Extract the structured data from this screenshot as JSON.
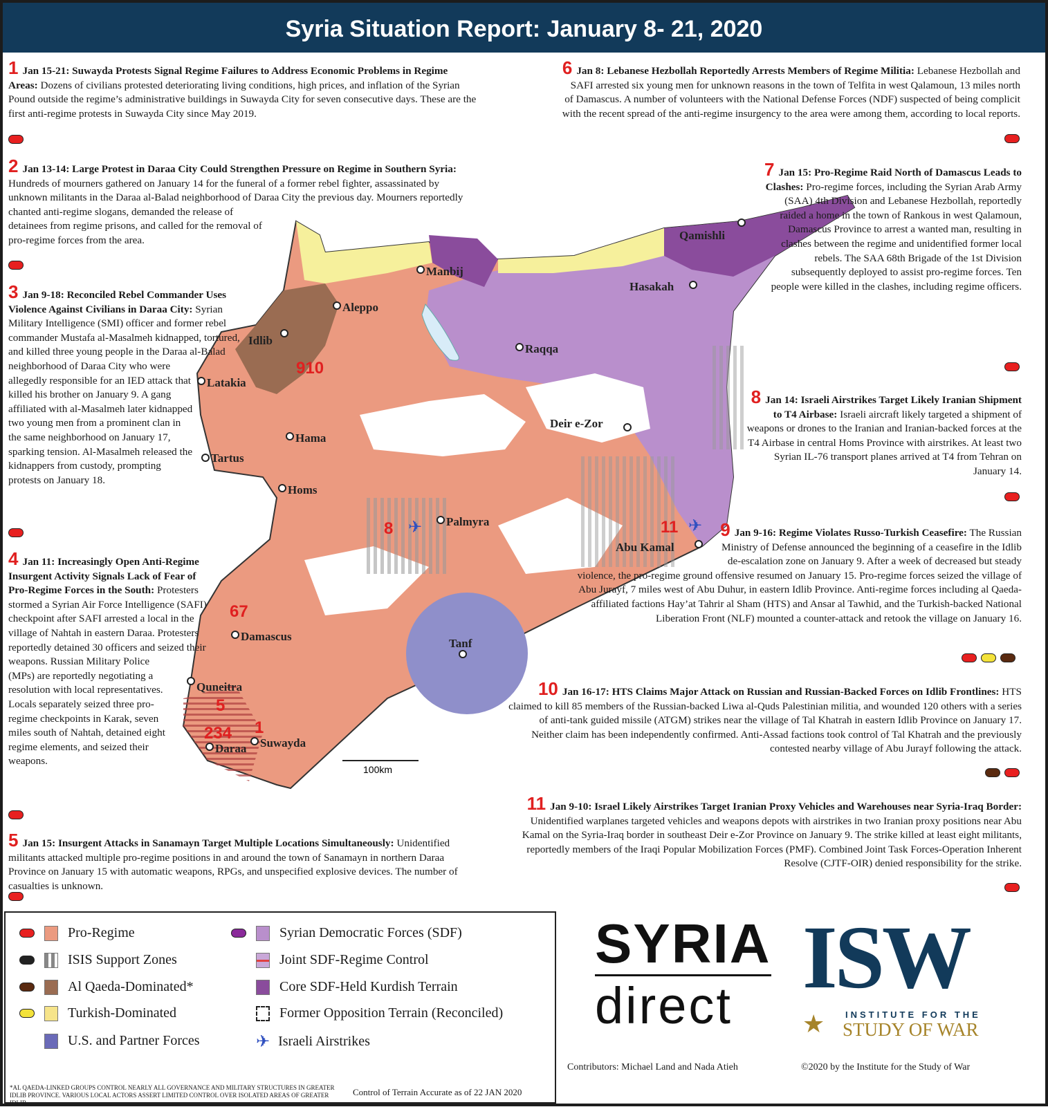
{
  "header": {
    "title": "Syria Situation Report: January 8- 21, 2020"
  },
  "events": [
    {
      "num": "1",
      "head": "Jan 15-21: Suwayda Protests Signal Regime Failures to Address Economic Problems in Regime Areas:",
      "body": " Dozens of civilians protested deteriorating living conditions, high prices, and inflation of the Syrian Pound outside the regime’s administrative buildings in Suwayda City for seven consecutive days. These are the first anti-regime protests in Suwayda City since May 2019.",
      "dots": [
        "#e82020"
      ]
    },
    {
      "num": "2",
      "head": "Jan 13-14: Large Protest in Daraa City Could Strengthen Pressure on Regime in Southern Syria:",
      "body": " Hundreds of mourners gathered on January 14 for the funeral of a former rebel fighter, assassinated by unknown militants in the Daraa al-Balad neighborhood of Daraa City the previous day. Mourners reportedly chanted anti-regime slogans, demanded the release of detainees from regime prisons, and called for the removal of pro-regime forces from the area.",
      "dots": [
        "#e82020"
      ]
    },
    {
      "num": "3",
      "head": "Jan 9-18: Reconciled Rebel Commander Uses Violence Against Civilians in Daraa City:",
      "body": " Syrian Military Intelligence (SMI) officer and former rebel commander Mustafa al-Masalmeh kidnapped, tortured, and killed three young people in the Daraa al-Balad neighborhood of Daraa City who were allegedly responsible for an IED attack that killed his brother on January 9. A gang affiliated with al-Masalmeh later kidnapped two young men from a prominent clan in the same neighborhood on January 17, sparking tension. Al-Masalmeh released the kidnappers from custody, prompting protests on January 18.",
      "dots": [
        "#e82020"
      ]
    },
    {
      "num": "4",
      "head": "Jan 11: Increasingly Open Anti-Regime Insurgent Activity Signals Lack of Fear of Pro-Regime Forces in the South:",
      "body": " Protesters stormed a Syrian Air Force Intelligence (SAFI) checkpoint after SAFI arrested a local in the village of Nahtah in eastern Daraa. Protesters reportedly detained 30 officers and seized their weapons. Russian Military Police (MPs) are reportedly negotiating a resolution with local representatives. Locals separately seized three pro-regime checkpoints in Karak, seven miles south of Nahtah, detained eight regime elements, and seized their weapons.",
      "dots": [
        "#e82020"
      ]
    },
    {
      "num": "5",
      "head": "Jan 15: Insurgent Attacks in Sanamayn Target Multiple Locations Simultaneously:",
      "body": " Unidentified militants attacked multiple pro-regime positions in and around the town of Sanamayn in northern Daraa Province on January 15 with automatic weapons, RPGs, and unspecified explosive devices. The number of casualties is unknown.",
      "dots": [
        "#e82020"
      ]
    },
    {
      "num": "6",
      "head": "Jan 8: Lebanese Hezbollah Reportedly Arrests Members of Regime Militia:",
      "body": " Lebanese Hezbollah and SAFI arrested six young men for unknown reasons in the town of Telfita in west Qalamoun, 13 miles north of Damascus. A number of volunteers with the National Defense Forces (NDF) suspected of being complicit with the recent spread of the anti-regime insurgency to the area were among them, according to local reports.",
      "dots": [
        "#e82020"
      ]
    },
    {
      "num": "7",
      "head": "Jan 15: Pro-Regime Raid North of Damascus Leads to Clashes:",
      "body": " Pro-regime forces, including the Syrian Arab Army (SAA) 4th Division and Lebanese Hezbollah, reportedly raided a home in the town of Rankous in west Qalamoun, Damascus Province to arrest a wanted man, resulting in clashes between the regime and unidentified former local rebels. The SAA 68th Brigade of the 1st Division subsequently deployed to assist pro-regime forces. Ten people were killed in the clashes, including regime officers.",
      "dots": [
        "#e82020"
      ]
    },
    {
      "num": "8",
      "head": "Jan 14: Israeli Airstrikes Target Likely Iranian Shipment to T4 Airbase:",
      "body": " Israeli aircraft likely targeted a shipment of weapons or drones to the Iranian and Iranian-backed forces at the T4 Airbase in central Homs Province with airstrikes. At least two Syrian IL-76 transport planes arrived at T4 from Tehran on January 14.",
      "dots": [
        "#e82020"
      ]
    },
    {
      "num": "9",
      "head": "Jan 9-16: Regime Violates Russo-Turkish Ceasefire:",
      "body": " The Russian Ministry of Defense announced the beginning of a ceasefire in the Idlib de-escalation zone on January 9. After a week of decreased but steady violence, the pro-regime ground offensive resumed on January 15. Pro-regime forces seized the village of Abu Jurayf, 7 miles west of Abu Duhur, in eastern Idlib Province. Anti-regime forces including al Qaeda-affiliated factions Hay’at Tahrir al Sham (HTS) and Ansar al Tawhid, and the Turkish-backed National Liberation Front (NLF) mounted a counter-attack and retook the village on January 16.",
      "dots": [
        "#e82020",
        "#f3e23a",
        "#5a2a10"
      ]
    },
    {
      "num": "10",
      "head": "Jan 16-17: HTS Claims Major Attack on Russian and Russian-Backed Forces on Idlib Frontlines:",
      "body": " HTS claimed to kill 85 members of the Russian-backed Liwa al-Quds Palestinian militia, and wounded 120 others with a series of anti-tank guided missile (ATGM) strikes near the village of Tal Khatrah in eastern Idlib Province on January 17. Neither claim has been independently confirmed. Anti-Assad factions took control of Tal Khatrah and the previously contested nearby village of Abu Jurayf following the attack.",
      "dots": [
        "#5a2a10",
        "#e82020"
      ]
    },
    {
      "num": "11",
      "head": "Jan 9-10: Israel Likely Airstrikes Target Iranian Proxy Vehicles and Warehouses near Syria-Iraq Border:",
      "body": " Unidentified warplanes targeted vehicles and weapons depots with airstrikes in two Iranian proxy positions near Abu Kamal on the Syria-Iraq border in southeast Deir e-Zor Province on January 9. The strike killed at least eight militants, reportedly members of the Iraqi Popular Mobilization Forces (PMF). Combined Joint Task Forces-Operation Inherent Resolve (CJTF-OIR) denied responsibility for the strike.",
      "dots": [
        "#e82020"
      ]
    }
  ],
  "map": {
    "cities": [
      "Manbij",
      "Qamishli",
      "Hasakah",
      "Aleppo",
      "Idlib",
      "Latakia",
      "Raqqa",
      "Hama",
      "Tartus",
      "Deir e-Zor",
      "Homs",
      "Palmyra",
      "Abu Kamal",
      "Damascus",
      "Tanf",
      "Quneitra",
      "Daraa",
      "Suwayda"
    ],
    "markers": [
      "910",
      "8",
      "11",
      "67",
      "5",
      "234",
      "1"
    ],
    "scale": "100km",
    "colors": {
      "pro_regime": "#eb9a80",
      "sdf": "#b98fcc",
      "core_sdf": "#8a4c9c",
      "turkish": "#f6f09c",
      "al_qaeda": "#9a6c52",
      "us": "#8f8fca",
      "water": "#d8ecf8"
    }
  },
  "legend": {
    "items": [
      {
        "label": "Pro-Regime",
        "oval": "#e82020",
        "swatch": "#eb9a80"
      },
      {
        "label": "ISIS Support Zones",
        "oval": "#222222",
        "swatch": "stripes"
      },
      {
        "label": "Al Qaeda-Dominated*",
        "oval": "#5a2a10",
        "swatch": "#9a6c52"
      },
      {
        "label": "Turkish-Dominated",
        "oval": "#f3e23a",
        "swatch": "#f6e48a"
      },
      {
        "label": "U.S. and Partner Forces",
        "swatch": "#6a6ab8"
      },
      {
        "label": "Syrian Democratic Forces (SDF)",
        "oval": "#8a2a9a",
        "swatch": "#b98fcc"
      },
      {
        "label": "Joint SDF-Regime Control",
        "swatch": "redline"
      },
      {
        "label": "Core SDF-Held Kurdish Terrain",
        "swatch": "#8a4c9c"
      },
      {
        "label": "Former Opposition Terrain (Reconciled)",
        "swatch": "dashed"
      },
      {
        "label": "Israeli Airstrikes",
        "swatch": "plane"
      }
    ],
    "footnote": "*AL QAEDA-LINKED GROUPS CONTROL NEARLY ALL GOVERNANCE AND MILITARY STRUCTURES IN GREATER IDLIB PROVINCE. VARIOUS LOCAL ACTORS ASSERT LIMITED CONTROL OVER ISOLATED AREAS OF GREATER IDLIB.",
    "accuracy": "Control of Terrain Accurate as of 22 JAN 2020"
  },
  "logos": {
    "syria_direct_1": "SYRIA",
    "syria_direct_2": "direct",
    "isw": "ISW",
    "isw_sub1": "INSTITUTE FOR THE",
    "isw_sub2": "STUDY OF WAR"
  },
  "footer": {
    "contributors": "Contributors: Michael Land and Nada Atieh",
    "copyright": "©2020 by the Institute for the Study of War"
  }
}
